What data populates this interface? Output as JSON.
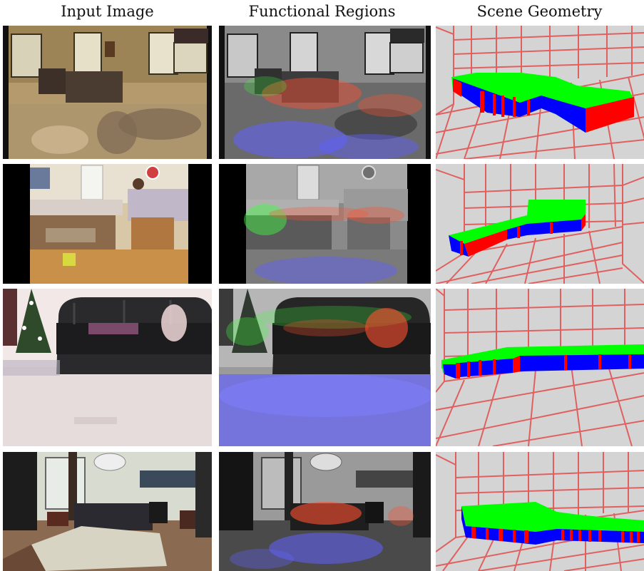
{
  "columns": {
    "input": "Input Image",
    "regions": "Functional Regions",
    "geometry": "Scene Geometry"
  },
  "rows": [
    {
      "id": 1,
      "scene": "living-room-with-table"
    },
    {
      "id": 2,
      "scene": "cluttered-bedroom"
    },
    {
      "id": 3,
      "scene": "leather-sofa-christmas-tree"
    },
    {
      "id": 4,
      "scene": "living-room-with-sofa-and-desk"
    }
  ],
  "legend_colors": {
    "grid": "#e06060",
    "floor_bg": "#d4d4d4",
    "top_face": "#00ff00",
    "front_face": "#0000ff",
    "side_face": "#ff0000",
    "overlay_floor": "#6060ff",
    "overlay_sit": "#ff5030",
    "overlay_reach": "#40ff40"
  }
}
